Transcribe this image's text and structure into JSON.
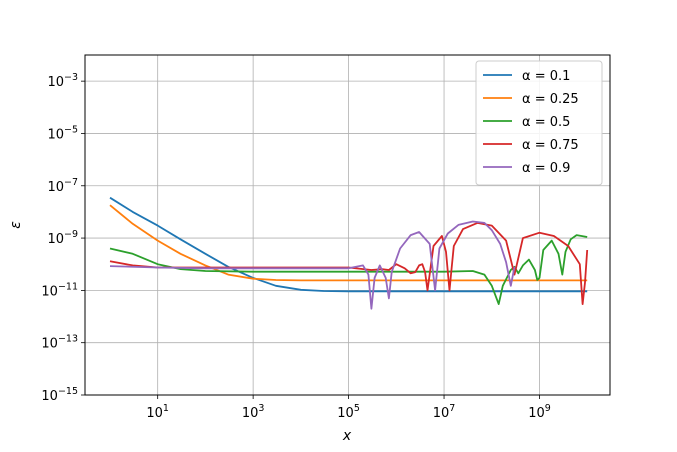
{
  "chart_data": {
    "type": "line",
    "title": "",
    "xlabel": "x",
    "ylabel": "ε",
    "xscale": "log",
    "yscale": "log",
    "xlim": [
      0.3,
      30000000000
    ],
    "ylim": [
      1e-15,
      0.01
    ],
    "grid": true,
    "legend_placement": "top-right",
    "x_ticks": [
      {
        "value": 10,
        "base": "10",
        "exp": "1"
      },
      {
        "value": 1000,
        "base": "10",
        "exp": "3"
      },
      {
        "value": 100000,
        "base": "10",
        "exp": "5"
      },
      {
        "value": 10000000,
        "base": "10",
        "exp": "7"
      },
      {
        "value": 1000000000,
        "base": "10",
        "exp": "9"
      }
    ],
    "y_ticks": [
      {
        "value": 1e-15,
        "base": "10",
        "exp": "−15"
      },
      {
        "value": 1e-13,
        "base": "10",
        "exp": "−13"
      },
      {
        "value": 1e-11,
        "base": "10",
        "exp": "−11"
      },
      {
        "value": 1e-09,
        "base": "10",
        "exp": "−9"
      },
      {
        "value": 1e-07,
        "base": "10",
        "exp": "−7"
      },
      {
        "value": 1e-05,
        "base": "10",
        "exp": "−5"
      },
      {
        "value": 0.001,
        "base": "10",
        "exp": "−3"
      }
    ],
    "series": [
      {
        "name": "α = 0.1",
        "color": "#1f77b4",
        "x": [
          1,
          3,
          10,
          30,
          100,
          300,
          1000,
          3000,
          10000,
          30000,
          100000,
          1000000,
          10000000,
          100000000,
          1000000000,
          10000000000
        ],
        "y": [
          3.5e-08,
          1e-08,
          3e-09,
          9e-10,
          2.5e-10,
          8e-11,
          3e-11,
          1.5e-11,
          1.05e-11,
          9.5e-12,
          9.2e-12,
          9.2e-12,
          9.2e-12,
          9.2e-12,
          9.2e-12,
          9.2e-12
        ]
      },
      {
        "name": "α = 0.25",
        "color": "#ff7f0e",
        "x": [
          1,
          3,
          10,
          30,
          100,
          300,
          1000,
          3000,
          10000,
          100000,
          1000000,
          10000000,
          100000000,
          1000000000,
          10000000000
        ],
        "y": [
          1.8e-08,
          3.5e-09,
          8e-10,
          2.5e-10,
          9e-11,
          4e-11,
          2.8e-11,
          2.5e-11,
          2.4e-11,
          2.4e-11,
          2.4e-11,
          2.4e-11,
          2.4e-11,
          2.4e-11,
          2.4e-11
        ]
      },
      {
        "name": "α = 0.5",
        "color": "#2ca02c",
        "x": [
          1,
          3,
          10,
          30,
          100,
          1000,
          10000,
          100000,
          1000000,
          10000000,
          40000000,
          70000000,
          100000000,
          140000000,
          170000000,
          250000000,
          300000000,
          360000000,
          450000000,
          600000000,
          800000000,
          900000000,
          1000000000,
          1200000000,
          1800000000,
          2500000000,
          3000000000,
          3500000000,
          4500000000,
          6000000000,
          10000000000
        ],
        "y": [
          4e-10,
          2.5e-10,
          1e-10,
          6.5e-11,
          5.5e-11,
          5.2e-11,
          5.2e-11,
          5.2e-11,
          5.2e-11,
          5.2e-11,
          5.5e-11,
          4e-11,
          1.5e-11,
          3e-12,
          1.5e-11,
          6e-11,
          8e-11,
          4.5e-11,
          9e-11,
          1.5e-10,
          6e-11,
          2.5e-11,
          3e-11,
          3.5e-10,
          8e-10,
          2.5e-10,
          4e-11,
          3e-10,
          9e-10,
          1.3e-09,
          1.1e-09
        ]
      },
      {
        "name": "α = 0.75",
        "color": "#d62728",
        "x": [
          1,
          3,
          10,
          100,
          1000,
          10000,
          100000,
          300000,
          500000,
          700000,
          1000000,
          1500000,
          2000000,
          2500000,
          3000000,
          3500000,
          4000000,
          4500000,
          6000000,
          9000000,
          11000000,
          13000000,
          14000000,
          16000000,
          25000000,
          50000000,
          100000000,
          200000000,
          300000000,
          450000000,
          1000000000,
          2000000000,
          4000000000,
          7000000000,
          8000000000,
          9000000000,
          10000000000
        ],
        "y": [
          1.3e-10,
          9e-11,
          7.5e-11,
          7.5e-11,
          7.5e-11,
          7.5e-11,
          7.5e-11,
          6e-11,
          6.5e-11,
          6e-11,
          1e-10,
          7e-11,
          4.5e-11,
          5e-11,
          9e-11,
          1e-10,
          5e-11,
          1e-11,
          5e-10,
          1.2e-09,
          3e-10,
          1e-11,
          4e-11,
          5e-10,
          2.2e-09,
          3.8e-09,
          3e-09,
          8e-10,
          4e-11,
          1e-09,
          1.6e-09,
          1.2e-09,
          5e-10,
          1e-10,
          3e-12,
          2e-11,
          3.5e-10
        ]
      },
      {
        "name": "α = 0.9",
        "color": "#9467bd",
        "x": [
          1,
          10,
          100,
          1000,
          10000,
          100000,
          200000,
          260000,
          300000,
          350000,
          450000,
          600000,
          700000,
          800000,
          1200000,
          2000000,
          3000000,
          5000000,
          6500000,
          8000000,
          12000000,
          20000000,
          40000000,
          70000000,
          100000000,
          150000000,
          200000000,
          250000000,
          300000000
        ],
        "y": [
          8.5e-11,
          7.5e-11,
          7e-11,
          7e-11,
          7e-11,
          7e-11,
          9e-11,
          4e-11,
          2e-12,
          3e-11,
          9e-11,
          3e-11,
          5e-12,
          5e-11,
          4e-10,
          1.3e-09,
          1.7e-09,
          6e-10,
          1e-11,
          4e-10,
          1.5e-09,
          3.2e-09,
          4.3e-09,
          3.8e-09,
          2e-09,
          6e-10,
          1.2e-10,
          1.5e-11,
          8e-11
        ]
      }
    ]
  }
}
